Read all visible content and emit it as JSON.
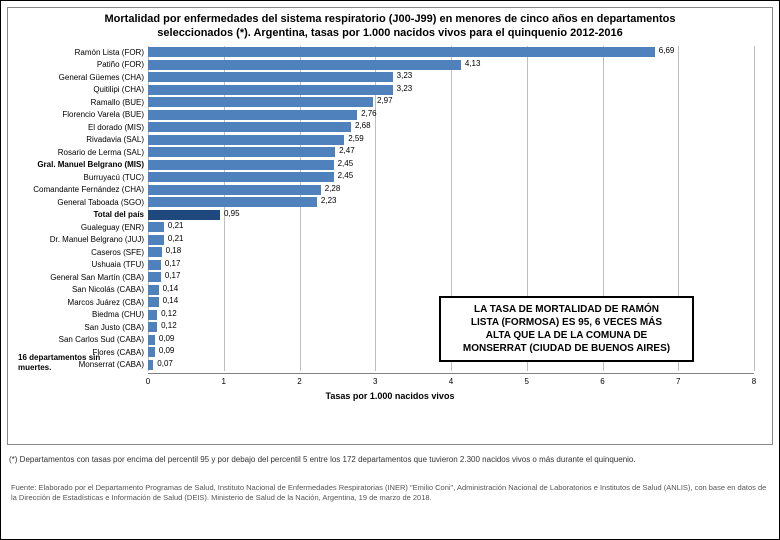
{
  "title_line1": "Mortalidad por enfermedades del sistema respiratorio (J00-J99) en menores de cinco años en departamentos",
  "title_line2": "seleccionados (*). Argentina, tasas por 1.000 nacidos vivos para el quinquenio 2012-2016",
  "chart": {
    "type": "bar-horizontal",
    "xlim": [
      0,
      8
    ],
    "xtick_step": 1,
    "xlabel": "Tasas por 1.000 nacidos vivos",
    "grid_color": "#bfbfbf",
    "background_color": "#ffffff",
    "bar_color_upper": "#4f81bd",
    "bar_color_total": "#1f497d",
    "bar_color_lower": "#4f81bd",
    "label_fontsize": 8,
    "value_fontsize": 8,
    "title_fontsize": 11,
    "bars": [
      {
        "label": "Ramón Lista (FOR)",
        "value": 6.69,
        "group": "upper",
        "bold": false
      },
      {
        "label": "Patiño (FOR)",
        "value": 4.13,
        "group": "upper",
        "bold": false
      },
      {
        "label": "General Güemes (CHA)",
        "value": 3.23,
        "group": "upper",
        "bold": false
      },
      {
        "label": "Quitilipi (CHA)",
        "value": 3.23,
        "group": "upper",
        "bold": false
      },
      {
        "label": "Ramallo (BUE)",
        "value": 2.97,
        "group": "upper",
        "bold": false
      },
      {
        "label": "Florencio Varela (BUE)",
        "value": 2.76,
        "group": "upper",
        "bold": false
      },
      {
        "label": "El dorado (MIS)",
        "value": 2.68,
        "group": "upper",
        "bold": false
      },
      {
        "label": "Rivadavia (SAL)",
        "value": 2.59,
        "group": "upper",
        "bold": false
      },
      {
        "label": "Rosario de Lerma (SAL)",
        "value": 2.47,
        "group": "upper",
        "bold": false
      },
      {
        "label": "Gral. Manuel Belgrano (MIS)",
        "value": 2.45,
        "group": "upper",
        "bold": true
      },
      {
        "label": "Burruyacú (TUC)",
        "value": 2.45,
        "group": "upper",
        "bold": false
      },
      {
        "label": "Comandante Fernández (CHA)",
        "value": 2.28,
        "group": "upper",
        "bold": false
      },
      {
        "label": "General Taboada (SGO)",
        "value": 2.23,
        "group": "upper",
        "bold": false
      },
      {
        "label": "Total del país",
        "value": 0.95,
        "group": "total",
        "bold": true
      },
      {
        "label": "Gualeguay (ENR)",
        "value": 0.21,
        "group": "lower",
        "bold": false
      },
      {
        "label": "Dr. Manuel Belgrano (JUJ)",
        "value": 0.21,
        "group": "lower",
        "bold": false
      },
      {
        "label": "Caseros (SFE)",
        "value": 0.18,
        "group": "lower",
        "bold": false
      },
      {
        "label": "Ushuaia (TFU)",
        "value": 0.17,
        "group": "lower",
        "bold": false
      },
      {
        "label": "General San Martín (CBA)",
        "value": 0.17,
        "group": "lower",
        "bold": false
      },
      {
        "label": "San Nicolás (CABA)",
        "value": 0.14,
        "group": "lower",
        "bold": false
      },
      {
        "label": "Marcos Juárez (CBA)",
        "value": 0.14,
        "group": "lower",
        "bold": false
      },
      {
        "label": "Biedma (CHU)",
        "value": 0.12,
        "group": "lower",
        "bold": false
      },
      {
        "label": "San Justo (CBA)",
        "value": 0.12,
        "group": "lower",
        "bold": false
      },
      {
        "label": "San Carlos Sud (CABA)",
        "value": 0.09,
        "group": "lower",
        "bold": false
      },
      {
        "label": "Flores (CABA)",
        "value": 0.09,
        "group": "lower",
        "bold": false
      },
      {
        "label": "Monserrat (CABA)",
        "value": 0.07,
        "group": "lower",
        "bold": false
      }
    ]
  },
  "bottom_note_line1": "16 departamentos sin",
  "bottom_note_line2": "muertes.",
  "footer_note": "(*) Departamentos con tasas por encima del percentil 95 y por debajo del percentil 5 entre los 172 departamentos que tuvieron 2.300 nacidos vivos o más durante el quinquenio.",
  "source": "Fuente: Elaborado por el Departamento Programas de Salud, Instituto Nacional de Enfermedades Respiratorias (INER) \"Emilio Coni\", Administración Nacional de Laboratorios e Institutos de Salud (ANLIS), con base en datos de la Dirección de Estadísticas e Información de Salud (DEIS). Ministerio de Salud de la Nación, Argentina, 19 de marzo de 2018.",
  "callout_line1": "LA TASA DE MORTALIDAD DE RAMÓN",
  "callout_line2": "LISTA (FORMOSA) ES 95, 6 VECES MÁS",
  "callout_line3": "ALTA QUE LA DE LA COMUNA DE",
  "callout_line4": "MONSERRAT (CIUDAD DE BUENOS AIRES)"
}
